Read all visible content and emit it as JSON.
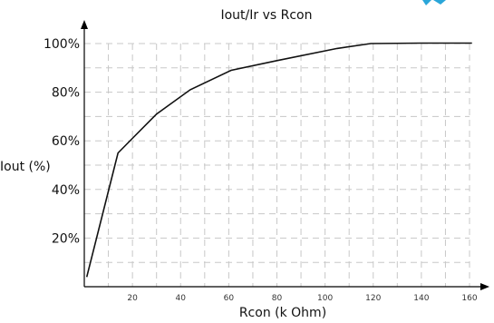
{
  "chart_data": {
    "type": "line",
    "title": "Iout/Ir vs Rcon",
    "xlabel": "Rcon (k Ohm)",
    "ylabel": "Iout (%)",
    "xlim": [
      0,
      170
    ],
    "ylim": [
      0,
      103
    ],
    "x_ticks": [
      20,
      40,
      60,
      80,
      100,
      120,
      140,
      160
    ],
    "x_tick_labels": [
      "20",
      "40",
      "60",
      "80",
      "100",
      "120",
      "140",
      "160"
    ],
    "y_ticks": [
      20,
      40,
      60,
      80,
      100
    ],
    "y_tick_labels": [
      "20%",
      "40%",
      "60%",
      "80%",
      "100%"
    ],
    "grid": true,
    "series": [
      {
        "x": [
          1,
          14,
          20,
          30,
          44,
          61,
          80,
          105,
          119,
          140,
          161
        ],
        "y": [
          4,
          55,
          61,
          71,
          81,
          89,
          93,
          98,
          100,
          100.2,
          100.2
        ]
      }
    ],
    "colors": {
      "line": "#111111",
      "grid": "#c8c8c8",
      "accent": "#2aa6d9"
    }
  }
}
